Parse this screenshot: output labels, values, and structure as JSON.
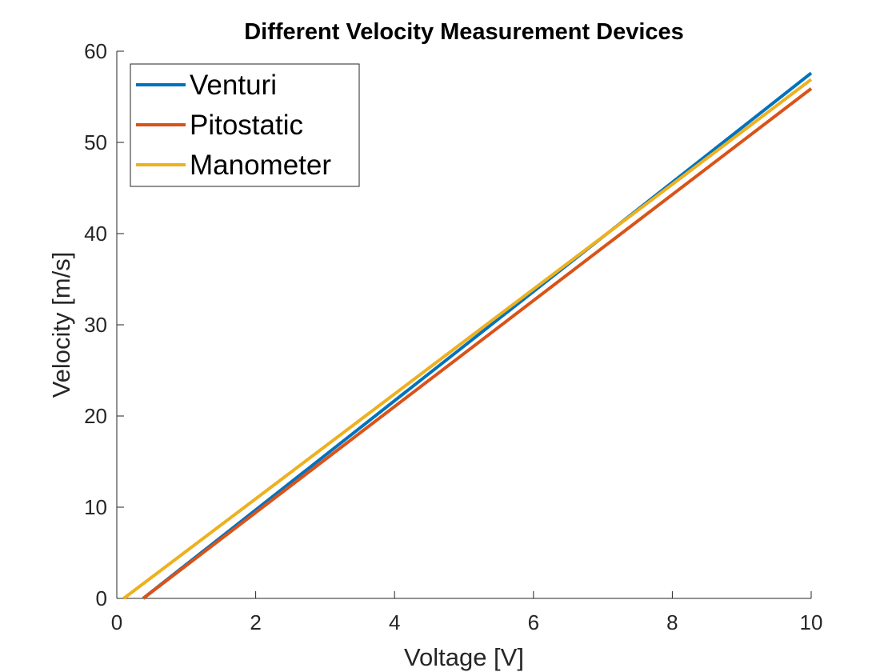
{
  "chart_data": {
    "type": "line",
    "title": "Different Velocity Measurement Devices",
    "xlabel": "Voltage [V]",
    "ylabel": "Velocity [m/s]",
    "xlim": [
      0,
      10
    ],
    "ylim": [
      0,
      60
    ],
    "xticks": [
      0,
      2,
      4,
      6,
      8,
      10
    ],
    "yticks": [
      0,
      10,
      20,
      30,
      40,
      50,
      60
    ],
    "xtick_labels": [
      "0",
      "2",
      "4",
      "6",
      "8",
      "10"
    ],
    "ytick_labels": [
      "0",
      "10",
      "20",
      "30",
      "40",
      "50",
      "60"
    ],
    "grid": false,
    "legend_position": "top-left",
    "series": [
      {
        "name": "Venturi",
        "color": "#0072BD",
        "x": [
          0.38,
          10
        ],
        "y": [
          0,
          57.6
        ]
      },
      {
        "name": "Pitostatic",
        "color": "#D95319",
        "x": [
          0.38,
          10
        ],
        "y": [
          0,
          55.9
        ]
      },
      {
        "name": "Manometer",
        "color": "#EDB120",
        "x": [
          0.1,
          10
        ],
        "y": [
          0,
          56.9
        ]
      }
    ]
  }
}
